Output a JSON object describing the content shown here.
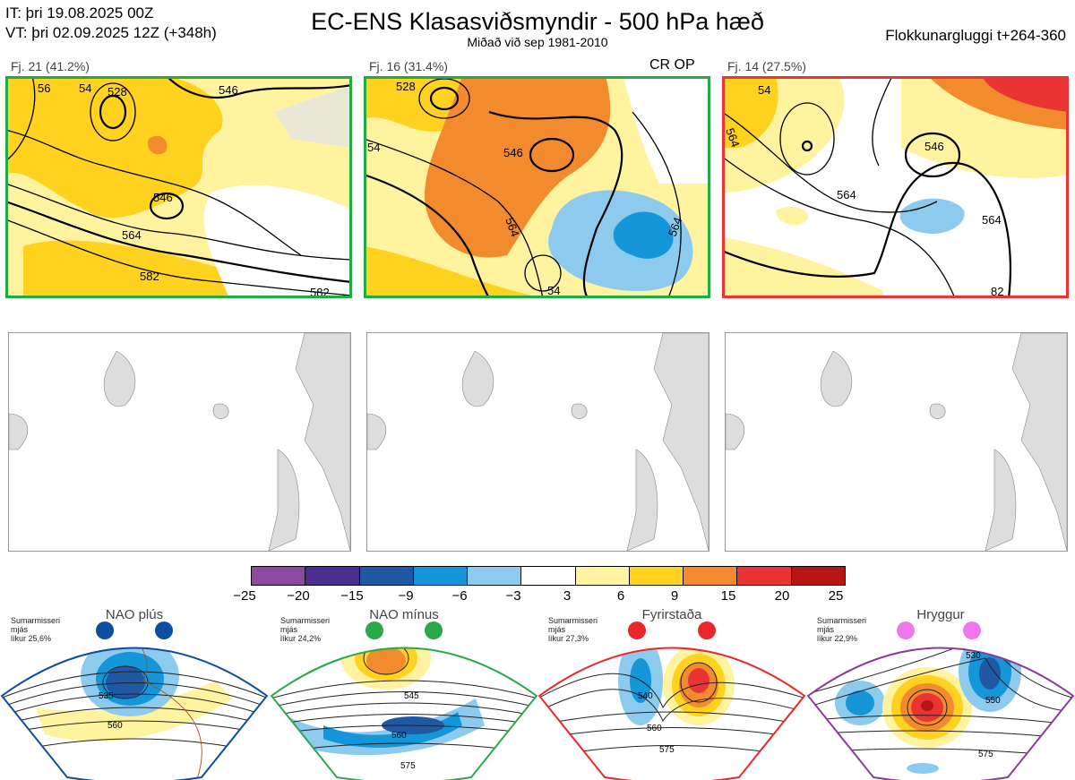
{
  "header": {
    "it": "IT: þri 19.08.2025 00Z",
    "vt": "VT: þri 02.09.2025 12Z  (+348h)",
    "title": "EC-ENS Klasasviðsmyndir - 500 hPa hæð",
    "subtitle": "Miðað við sep 1981-2010",
    "window": "Flokkunargluggi t+264-360"
  },
  "panels": [
    {
      "label": "Fj. 21 (41.2%)",
      "border": "#22aa44",
      "contours": [
        "528",
        "546",
        "546",
        "564",
        "582",
        "56",
        "54",
        "582"
      ]
    },
    {
      "label": "Fj. 16 (31.4%)",
      "border": "#22aa44",
      "badge": "CR OP",
      "contours": [
        "546",
        "564",
        "564",
        "54",
        "54",
        "528"
      ]
    },
    {
      "label": "Fj. 14 (27.5%)",
      "border": "#ee3333",
      "contours": [
        "546",
        "564",
        "564",
        "564",
        "54",
        "82"
      ]
    }
  ],
  "colorbar": {
    "colors": [
      "#8b4aa0",
      "#4a2f90",
      "#1f59a5",
      "#1596d9",
      "#8ccbee",
      "#ffffff",
      "#fff3a0",
      "#ffd21f",
      "#f28a2e",
      "#ea3433",
      "#b71416"
    ],
    "ticks": [
      "−25",
      "−20",
      "−15",
      "−9",
      "−6",
      "−3",
      "3",
      "6",
      "9",
      "15",
      "20",
      "25"
    ]
  },
  "regimes": [
    {
      "name": "NAO plús",
      "note": [
        "Sumarmisseri",
        "mjás",
        "líkur 25,6%"
      ],
      "color": "#0d4f9e",
      "contours": [
        "535",
        "560"
      ]
    },
    {
      "name": "NAO mínus",
      "note": [
        "Sumarmisseri",
        "mjás",
        "líkur 24,2%"
      ],
      "color": "#2aa84a",
      "contours": [
        "545",
        "560",
        "575"
      ]
    },
    {
      "name": "Fyrirstaða",
      "note": [
        "Sumarmisseri",
        "mjás",
        "líkur 27,3%"
      ],
      "color": "#e8282b",
      "contours": [
        "540",
        "560",
        "575"
      ]
    },
    {
      "name": "Hryggur",
      "note": [
        "Sumarmisseri",
        "mjás",
        "líkur 22,9%"
      ],
      "color": "#ee77ee",
      "contours": [
        "530",
        "550",
        "575"
      ]
    }
  ]
}
